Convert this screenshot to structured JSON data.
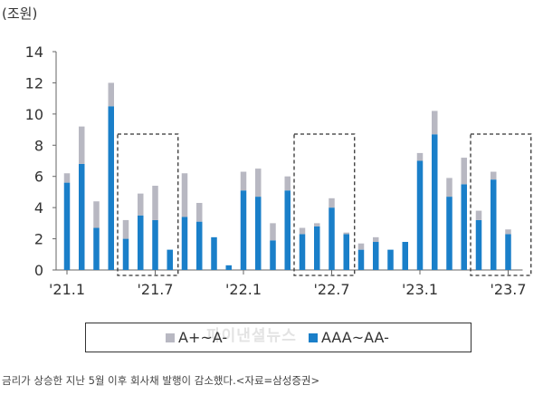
{
  "chart_data": {
    "type": "bar",
    "unit_label": "(조원)",
    "ylim": [
      0,
      14
    ],
    "yticks": [
      0,
      2,
      4,
      6,
      8,
      10,
      12,
      14
    ],
    "x_tick_labels": [
      {
        "label": "'21.1",
        "index": 0
      },
      {
        "label": "'21.7",
        "index": 6
      },
      {
        "label": "'22.1",
        "index": 12
      },
      {
        "label": "'22.7",
        "index": 18
      },
      {
        "label": "'23.1",
        "index": 24
      },
      {
        "label": "'23.7",
        "index": 30
      }
    ],
    "highlight_ranges": [
      [
        4,
        7
      ],
      [
        16,
        19
      ],
      [
        28,
        31
      ]
    ],
    "stacked": true,
    "series": [
      {
        "name": "AAA~AA-",
        "color": "#1a7fc9",
        "values": [
          5.6,
          6.8,
          2.7,
          10.5,
          2.0,
          3.5,
          3.2,
          1.3,
          3.4,
          3.1,
          2.1,
          0.3,
          5.1,
          4.7,
          1.9,
          5.1,
          2.3,
          2.8,
          4.0,
          2.3,
          1.3,
          1.8,
          1.3,
          1.8,
          7.0,
          8.7,
          4.7,
          5.5,
          3.2,
          5.8,
          2.3
        ]
      },
      {
        "name": "A+~A-",
        "color": "#b8b8c2",
        "values": [
          0.6,
          2.4,
          1.7,
          1.5,
          1.2,
          1.4,
          2.2,
          0.0,
          2.8,
          1.2,
          0.0,
          0.0,
          1.2,
          1.8,
          1.1,
          0.9,
          0.4,
          0.2,
          0.6,
          0.1,
          0.4,
          0.3,
          0.0,
          0.0,
          0.5,
          1.5,
          1.2,
          1.7,
          0.6,
          0.5,
          0.3
        ]
      }
    ]
  },
  "legend": [
    {
      "label": "A+~A-",
      "color": "#b8b8c2"
    },
    {
      "label": "AAA~AA-",
      "color": "#1a7fc9"
    }
  ],
  "watermark": "파이낸셜뉴스",
  "caption": "금리가 상승한 지난 5월 이후 회사채 발행이 감소했다.<자료=삼성증권>"
}
